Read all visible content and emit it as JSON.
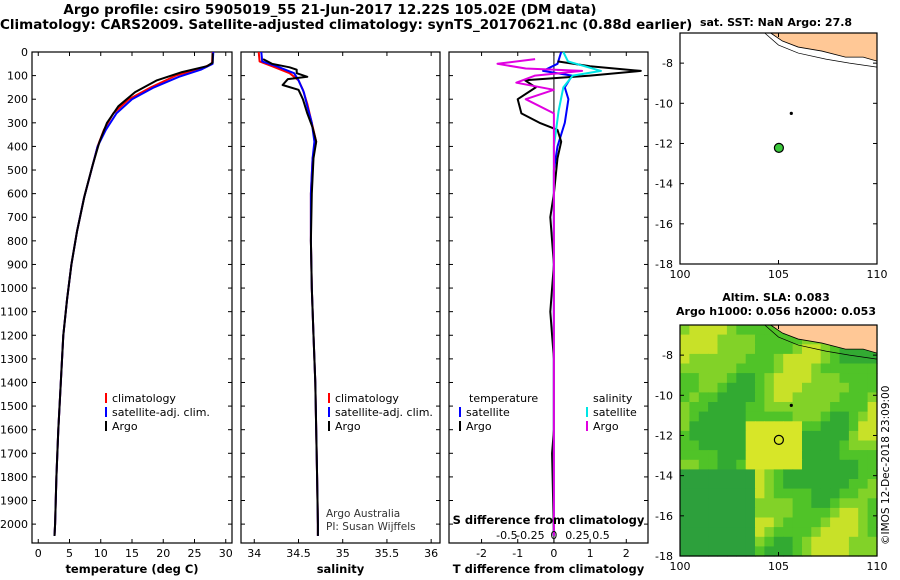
{
  "titles": {
    "line1": "Argo profile: csiro 5905019_55 21-Jun-2017 12.22S 105.02E (DM data)",
    "line2": "Climatology: CARS2009. Satellite-adjusted climatology: synTS_20170621.nc (0.88d earlier)",
    "sst": "sat. SST: NaN Argo: 27.8",
    "sla1": "Altim. SLA: 0.083",
    "sla2": "Argo h1000: 0.056 h2000: 0.053",
    "imos": "©IMOS 12-Dec-2018 23:09:00"
  },
  "colors": {
    "climatology": "#ff0000",
    "satellite": "#0000ff",
    "argo": "#000000",
    "sal_satellite": "#00e5e5",
    "sal_argo": "#e000e0",
    "land": "#ffc896"
  },
  "chart_data": [
    {
      "type": "line",
      "name": "temperature-profile",
      "xlabel": "temperature (deg C)",
      "xlim": [
        -1,
        31
      ],
      "xticks": [
        0,
        5,
        10,
        15,
        20,
        25,
        30
      ],
      "ylim": [
        2080,
        0
      ],
      "yticks": [
        0,
        100,
        200,
        300,
        400,
        500,
        600,
        700,
        800,
        900,
        1000,
        1100,
        1200,
        1300,
        1400,
        1500,
        1600,
        1700,
        1800,
        1900,
        2000
      ],
      "legend": [
        "climatology",
        "satellite-adj. clim.",
        "Argo"
      ],
      "series": [
        {
          "name": "climatology",
          "points": [
            [
              27.9,
              0
            ],
            [
              27.8,
              50
            ],
            [
              26,
              70
            ],
            [
              22,
              100
            ],
            [
              18,
              150
            ],
            [
              14.5,
              200
            ],
            [
              12,
              260
            ],
            [
              10.5,
              330
            ],
            [
              9.5,
              400
            ],
            [
              8.5,
              500
            ],
            [
              7.3,
              620
            ],
            [
              6.2,
              760
            ],
            [
              5.3,
              900
            ],
            [
              4.6,
              1050
            ],
            [
              4.0,
              1200
            ],
            [
              3.6,
              1400
            ],
            [
              3.2,
              1600
            ],
            [
              2.9,
              1800
            ],
            [
              2.7,
              2000
            ],
            [
              2.6,
              2050
            ]
          ]
        },
        {
          "name": "satellite-adj. clim.",
          "points": [
            [
              28.0,
              0
            ],
            [
              27.9,
              50
            ],
            [
              26,
              75
            ],
            [
              22.5,
              105
            ],
            [
              18.5,
              150
            ],
            [
              15,
              200
            ],
            [
              12.5,
              260
            ],
            [
              10.8,
              330
            ],
            [
              9.5,
              400
            ],
            [
              8.5,
              500
            ],
            [
              7.3,
              620
            ],
            [
              6.2,
              760
            ],
            [
              5.3,
              900
            ],
            [
              4.6,
              1050
            ],
            [
              4.0,
              1200
            ],
            [
              3.6,
              1400
            ],
            [
              3.2,
              1600
            ],
            [
              2.9,
              1800
            ],
            [
              2.7,
              2000
            ],
            [
              2.6,
              2050
            ]
          ]
        },
        {
          "name": "Argo",
          "points": [
            [
              27.9,
              5
            ],
            [
              27.9,
              45
            ],
            [
              27,
              60
            ],
            [
              23,
              85
            ],
            [
              19,
              120
            ],
            [
              15.5,
              170
            ],
            [
              12.8,
              230
            ],
            [
              11,
              300
            ],
            [
              9.8,
              380
            ],
            [
              8.7,
              480
            ],
            [
              7.4,
              610
            ],
            [
              6.2,
              760
            ],
            [
              5.3,
              900
            ],
            [
              4.6,
              1050
            ],
            [
              4.0,
              1200
            ],
            [
              3.6,
              1400
            ],
            [
              3.2,
              1600
            ],
            [
              2.9,
              1800
            ],
            [
              2.7,
              2000
            ],
            [
              2.6,
              2050
            ]
          ]
        }
      ]
    },
    {
      "type": "line",
      "name": "salinity-profile",
      "xlabel": "salinity",
      "xlim": [
        33.85,
        36.1
      ],
      "xticks": [
        34,
        34.5,
        35,
        35.5,
        36
      ],
      "xtick_labels": [
        "34",
        "34.5",
        "35",
        "35.5",
        "36"
      ],
      "ylim": [
        2080,
        0
      ],
      "legend": [
        "climatology",
        "satellite-adj. clim.",
        "Argo"
      ],
      "annotation": [
        "Argo Australia",
        "PI: Susan Wijffels"
      ],
      "series": [
        {
          "name": "climatology",
          "points": [
            [
              34.05,
              0
            ],
            [
              34.06,
              40
            ],
            [
              34.2,
              60
            ],
            [
              34.4,
              90
            ],
            [
              34.5,
              120
            ],
            [
              34.55,
              160
            ],
            [
              34.6,
              220
            ],
            [
              34.65,
              300
            ],
            [
              34.7,
              380
            ],
            [
              34.66,
              450
            ],
            [
              34.64,
              600
            ],
            [
              34.64,
              800
            ],
            [
              34.65,
              1000
            ],
            [
              34.67,
              1200
            ],
            [
              34.69,
              1400
            ],
            [
              34.7,
              1600
            ],
            [
              34.71,
              1800
            ],
            [
              34.72,
              2000
            ],
            [
              34.72,
              2050
            ]
          ]
        },
        {
          "name": "satellite-adj. clim.",
          "points": [
            [
              34.08,
              0
            ],
            [
              34.09,
              40
            ],
            [
              34.25,
              60
            ],
            [
              34.45,
              90
            ],
            [
              34.5,
              120
            ],
            [
              34.56,
              170
            ],
            [
              34.6,
              230
            ],
            [
              34.65,
              300
            ],
            [
              34.68,
              380
            ],
            [
              34.66,
              450
            ],
            [
              34.64,
              600
            ],
            [
              34.64,
              800
            ],
            [
              34.65,
              1000
            ],
            [
              34.67,
              1200
            ],
            [
              34.69,
              1400
            ],
            [
              34.7,
              1600
            ],
            [
              34.71,
              1800
            ],
            [
              34.72,
              2000
            ],
            [
              34.72,
              2050
            ]
          ]
        },
        {
          "name": "Argo",
          "points": [
            [
              34.1,
              30
            ],
            [
              34.2,
              50
            ],
            [
              34.4,
              65
            ],
            [
              34.48,
              75
            ],
            [
              34.48,
              90
            ],
            [
              34.6,
              105
            ],
            [
              34.38,
              115
            ],
            [
              34.32,
              140
            ],
            [
              34.5,
              160
            ],
            [
              34.55,
              200
            ],
            [
              34.6,
              260
            ],
            [
              34.66,
              320
            ],
            [
              34.7,
              380
            ],
            [
              34.67,
              450
            ],
            [
              34.65,
              600
            ],
            [
              34.64,
              800
            ],
            [
              34.65,
              1000
            ],
            [
              34.67,
              1200
            ],
            [
              34.69,
              1400
            ],
            [
              34.7,
              1600
            ],
            [
              34.71,
              1800
            ],
            [
              34.72,
              2000
            ],
            [
              34.72,
              2050
            ]
          ]
        }
      ]
    },
    {
      "type": "line",
      "name": "difference-profile",
      "xlabel": "T difference from climatology",
      "xlim": [
        -2.9,
        2.6
      ],
      "xticks": [
        -2,
        -1,
        0,
        1,
        2
      ],
      "secondary_label": "S difference from climatology",
      "secondary_ticks": [
        "-0.5",
        "-0.25",
        "0",
        "0.25",
        "0.5"
      ],
      "legend_temperature": [
        "temperature",
        "satellite",
        "Argo"
      ],
      "legend_salinity": [
        "salinity",
        "satellite",
        "Argo"
      ],
      "series": [
        {
          "name": "T satellite",
          "points": [
            [
              0.2,
              0
            ],
            [
              0.1,
              50
            ],
            [
              -0.3,
              80
            ],
            [
              0.5,
              100
            ],
            [
              0.3,
              150
            ],
            [
              0.4,
              200
            ],
            [
              0.3,
              300
            ],
            [
              0.1,
              400
            ],
            [
              0,
              500
            ],
            [
              0,
              700
            ],
            [
              0,
              1000
            ],
            [
              0,
              1500
            ],
            [
              0,
              2050
            ]
          ]
        },
        {
          "name": "T Argo",
          "points": [
            [
              0.1,
              40
            ],
            [
              1.0,
              60
            ],
            [
              2.4,
              80
            ],
            [
              1.0,
              100
            ],
            [
              -0.8,
              120
            ],
            [
              -0.5,
              150
            ],
            [
              -1.0,
              200
            ],
            [
              -0.9,
              260
            ],
            [
              -0.4,
              300
            ],
            [
              0.1,
              330
            ],
            [
              0.2,
              380
            ],
            [
              0.1,
              450
            ],
            [
              0,
              600
            ],
            [
              -0.1,
              700
            ],
            [
              0,
              900
            ],
            [
              -0.1,
              1100
            ],
            [
              0,
              1300
            ],
            [
              0,
              1600
            ],
            [
              -0.05,
              1700
            ],
            [
              0,
              2050
            ]
          ]
        },
        {
          "name": "S satellite",
          "points": [
            [
              0.1,
              0
            ],
            [
              0.15,
              40
            ],
            [
              0.5,
              80
            ],
            [
              0.2,
              100
            ],
            [
              0.1,
              150
            ],
            [
              0.05,
              250
            ],
            [
              0,
              400
            ],
            [
              0,
              1000
            ],
            [
              0,
              2050
            ]
          ]
        },
        {
          "name": "S Argo",
          "points": [
            [
              -0.2,
              30
            ],
            [
              -0.6,
              50
            ],
            [
              -0.3,
              70
            ],
            [
              0.3,
              80
            ],
            [
              -0.2,
              100
            ],
            [
              -0.4,
              130
            ],
            [
              0,
              160
            ],
            [
              -0.3,
              200
            ],
            [
              0,
              260
            ],
            [
              0,
              400
            ],
            [
              0,
              1000
            ],
            [
              0,
              2050
            ]
          ]
        }
      ]
    },
    {
      "type": "scatter",
      "name": "sst-map",
      "xlim": [
        100,
        110
      ],
      "ylim": [
        -18,
        -6.5
      ],
      "xticks": [
        100,
        105,
        110
      ],
      "yticks": [
        -8,
        -10,
        -12,
        -14,
        -16,
        -18
      ],
      "profile_location": [
        105.02,
        -12.22
      ]
    },
    {
      "type": "heatmap",
      "name": "sla-map",
      "xlim": [
        100,
        110
      ],
      "ylim": [
        -18,
        -6.5
      ],
      "xticks": [
        100,
        105,
        110
      ],
      "yticks": [
        -8,
        -10,
        -12,
        -14,
        -16,
        -18
      ],
      "profile_location": [
        105.02,
        -12.22
      ]
    }
  ]
}
